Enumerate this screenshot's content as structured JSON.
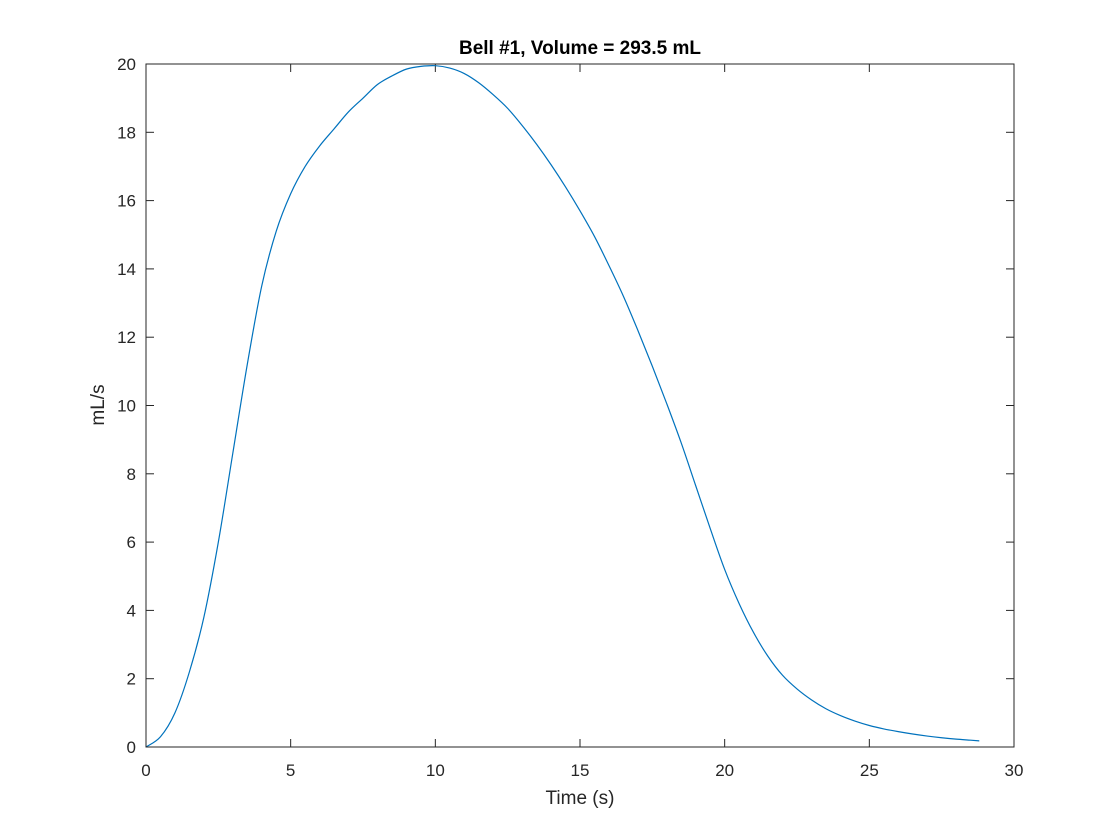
{
  "chart_data": {
    "type": "line",
    "title": "Bell #1, Volume = 293.5 mL",
    "xlabel": "Time (s)",
    "ylabel": "mL/s",
    "xlim": [
      0,
      30
    ],
    "ylim": [
      0,
      20
    ],
    "xticks": [
      0,
      5,
      10,
      15,
      20,
      25,
      30
    ],
    "yticks": [
      0,
      2,
      4,
      6,
      8,
      10,
      12,
      14,
      16,
      18,
      20
    ],
    "grid": false,
    "series": [
      {
        "color": "#0072BD",
        "x": [
          0,
          0.5,
          1,
          1.5,
          2,
          2.5,
          3,
          3.5,
          4,
          4.5,
          5,
          5.5,
          6,
          6.5,
          7,
          7.5,
          8,
          8.5,
          9,
          9.5,
          10,
          10.5,
          11,
          11.5,
          12,
          12.5,
          13,
          13.5,
          14,
          14.5,
          15,
          15.5,
          16,
          16.5,
          17,
          17.5,
          18,
          18.5,
          19,
          19.5,
          20,
          20.5,
          21,
          21.5,
          22,
          22.5,
          23,
          23.5,
          24,
          24.5,
          25,
          25.5,
          26,
          26.5,
          27,
          27.5,
          28,
          28.5,
          28.8
        ],
        "y": [
          0,
          0.3,
          1.0,
          2.2,
          3.8,
          6.0,
          8.6,
          11.2,
          13.5,
          15.1,
          16.2,
          17.0,
          17.6,
          18.1,
          18.6,
          19.0,
          19.4,
          19.65,
          19.85,
          19.93,
          19.95,
          19.88,
          19.72,
          19.45,
          19.1,
          18.7,
          18.2,
          17.65,
          17.05,
          16.4,
          15.7,
          14.95,
          14.1,
          13.2,
          12.2,
          11.15,
          10.05,
          8.9,
          7.65,
          6.4,
          5.2,
          4.2,
          3.35,
          2.65,
          2.1,
          1.7,
          1.38,
          1.12,
          0.92,
          0.76,
          0.63,
          0.53,
          0.45,
          0.38,
          0.32,
          0.27,
          0.23,
          0.2,
          0.18
        ]
      }
    ]
  }
}
